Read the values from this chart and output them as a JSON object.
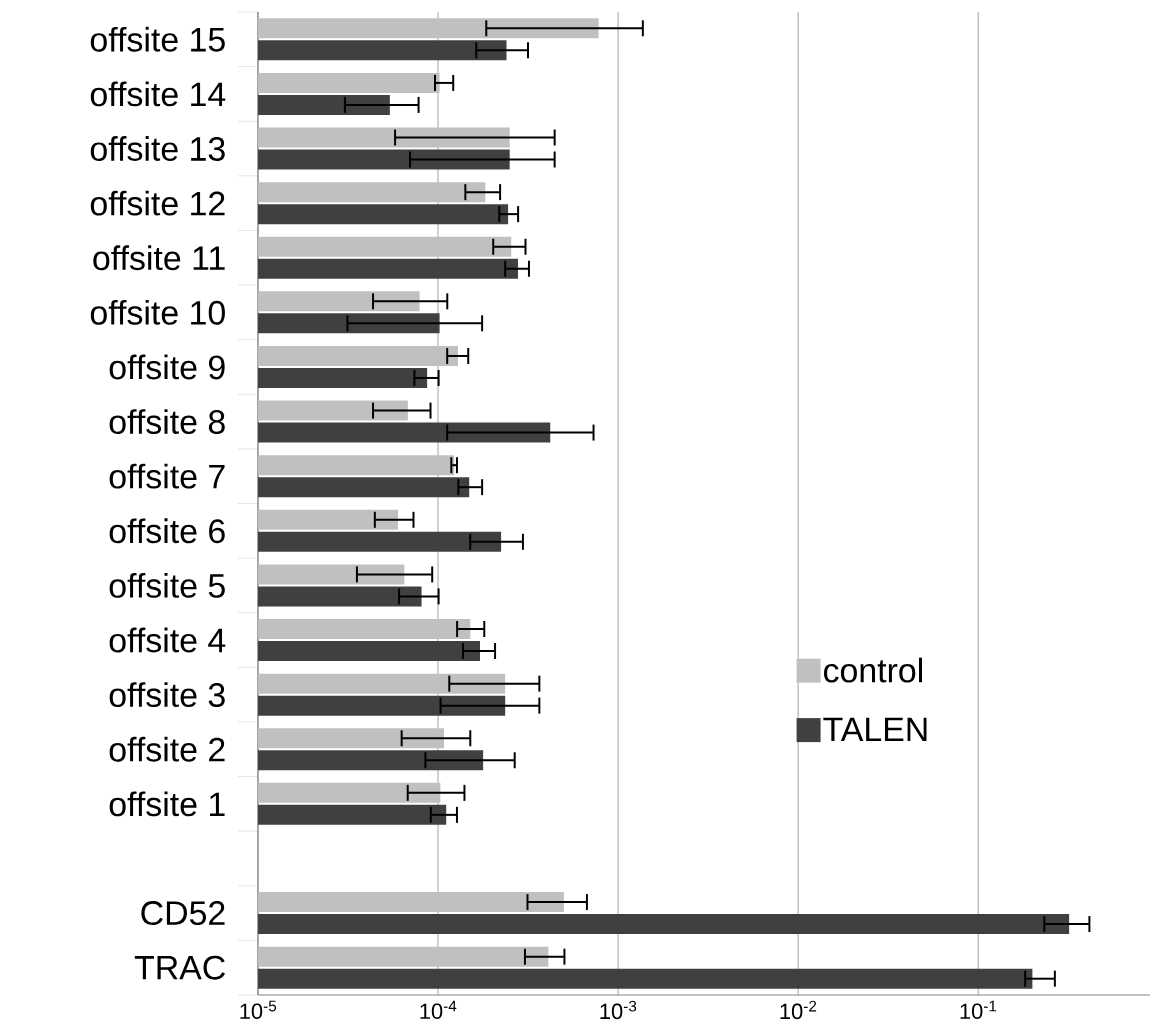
{
  "chart_data": {
    "type": "bar",
    "orientation": "horizontal",
    "log": "x",
    "categories": [
      "offsite 15",
      "offsite 14",
      "offsite 13",
      "offsite 12",
      "offsite 11",
      "offsite 10",
      "offsite 9",
      "offsite 8",
      "offsite 7",
      "offsite 6",
      "offsite 5",
      "offsite 4",
      "offsite 3",
      "offsite 2",
      "offsite 1",
      null,
      "CD52",
      "TRAC"
    ],
    "series": [
      {
        "name": "control",
        "color": "#c0c0c0",
        "values": [
          0.00078,
          0.000102,
          0.00025,
          0.000183,
          0.000255,
          7.9e-05,
          0.000129,
          6.8e-05,
          0.000123,
          6e-05,
          6.5e-05,
          0.000151,
          0.000236,
          0.000108,
          0.000103,
          null,
          0.0005,
          0.00041
        ],
        "errors": [
          [
            0.000183,
            0.00139
          ],
          [
            9.5e-05,
            0.000123
          ],
          [
            5.7e-05,
            0.00045
          ],
          [
            0.00014,
            0.000224
          ],
          [
            0.0002,
            0.00031
          ],
          [
            4.3e-05,
            0.000114
          ],
          [
            0.000111,
            0.000149
          ],
          [
            4.3e-05,
            9.2e-05
          ],
          [
            0.000117,
            0.000129
          ],
          [
            4.4e-05,
            7.4e-05
          ],
          [
            3.5e-05,
            9.4e-05
          ],
          [
            0.000126,
            0.000183
          ],
          [
            0.000114,
            0.00037
          ],
          [
            6.2e-05,
            0.000153
          ],
          [
            6.7e-05,
            0.000142
          ],
          null,
          [
            0.00031,
            0.00068
          ],
          [
            0.0003,
            0.00051
          ]
        ]
      },
      {
        "name": "TALEN",
        "color": "#404040",
        "values": [
          0.00024,
          5.4e-05,
          0.00025,
          0.000245,
          0.000278,
          0.000102,
          8.7e-05,
          0.00042,
          0.000149,
          0.000224,
          8.1e-05,
          0.000171,
          0.000236,
          0.000178,
          0.000111,
          null,
          0.32,
          0.2
        ],
        "errors": [
          [
            0.000161,
            0.00032
          ],
          [
            3e-05,
            7.9e-05
          ],
          [
            6.9e-05,
            0.00045
          ],
          [
            0.000216,
            0.000282
          ],
          [
            0.000233,
            0.000324
          ],
          [
            3.1e-05,
            0.000178
          ],
          [
            7.3e-05,
            0.000102
          ],
          [
            0.000111,
            0.00074
          ],
          [
            0.000128,
            0.000178
          ],
          [
            0.000149,
            0.0003
          ],
          [
            6e-05,
            0.000102
          ],
          [
            0.000136,
            0.00021
          ],
          [
            0.000102,
            0.00037
          ],
          [
            8.4e-05,
            0.00027
          ],
          [
            9e-05,
            0.000129
          ],
          null,
          [
            0.23,
            0.42
          ],
          [
            0.18,
            0.27
          ]
        ]
      }
    ],
    "xlim": [
      1e-05,
      0.9
    ],
    "xticks": [
      {
        "value": 1e-05,
        "label": "10$^{-5}$"
      },
      {
        "value": 0.0001,
        "label": "10$^{-4}$"
      },
      {
        "value": 0.001,
        "label": "10$^{-3}$"
      },
      {
        "value": 0.01,
        "label": "10$^{-2}$"
      },
      {
        "value": 0.1,
        "label": "10$^{-1}$"
      }
    ],
    "grid": "x",
    "legend": "right"
  }
}
